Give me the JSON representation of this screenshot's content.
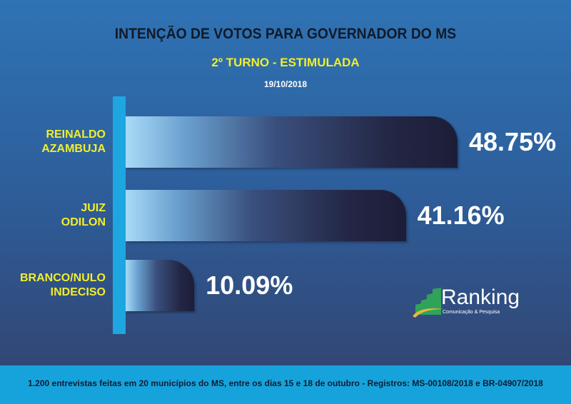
{
  "chart_data": {
    "type": "bar",
    "orientation": "horizontal",
    "title": "INTENÇÃO DE VOTOS PARA GOVERNADOR DO MS",
    "subtitle": "2º TURNO - ESTIMULADA",
    "date": "19/10/2018",
    "categories": [
      [
        "REINALDO",
        "AZAMBUJA"
      ],
      [
        "JUIZ",
        "ODILON"
      ],
      [
        "BRANCO/NULO",
        "INDECISO"
      ]
    ],
    "values": [
      48.75,
      41.16,
      10.09
    ],
    "data_labels": [
      "48.75%",
      "41.16%",
      "10.09%"
    ],
    "xlim": [
      0,
      50
    ],
    "grid": false
  },
  "footer": {
    "note": "1.200 entrevistas feitas em 20 municípios do MS, entre os dias 15 e 18 de outubro - Registros: MS-00108/2018 e BR-04907/2018"
  },
  "logo": {
    "name": "Ranking",
    "tagline": "Comunicação & Pesquisa"
  },
  "colors": {
    "title": "#111a28",
    "subtitle": "#f2ee2a",
    "axis": "#1ea6e0",
    "footer": "#16a3dc"
  }
}
